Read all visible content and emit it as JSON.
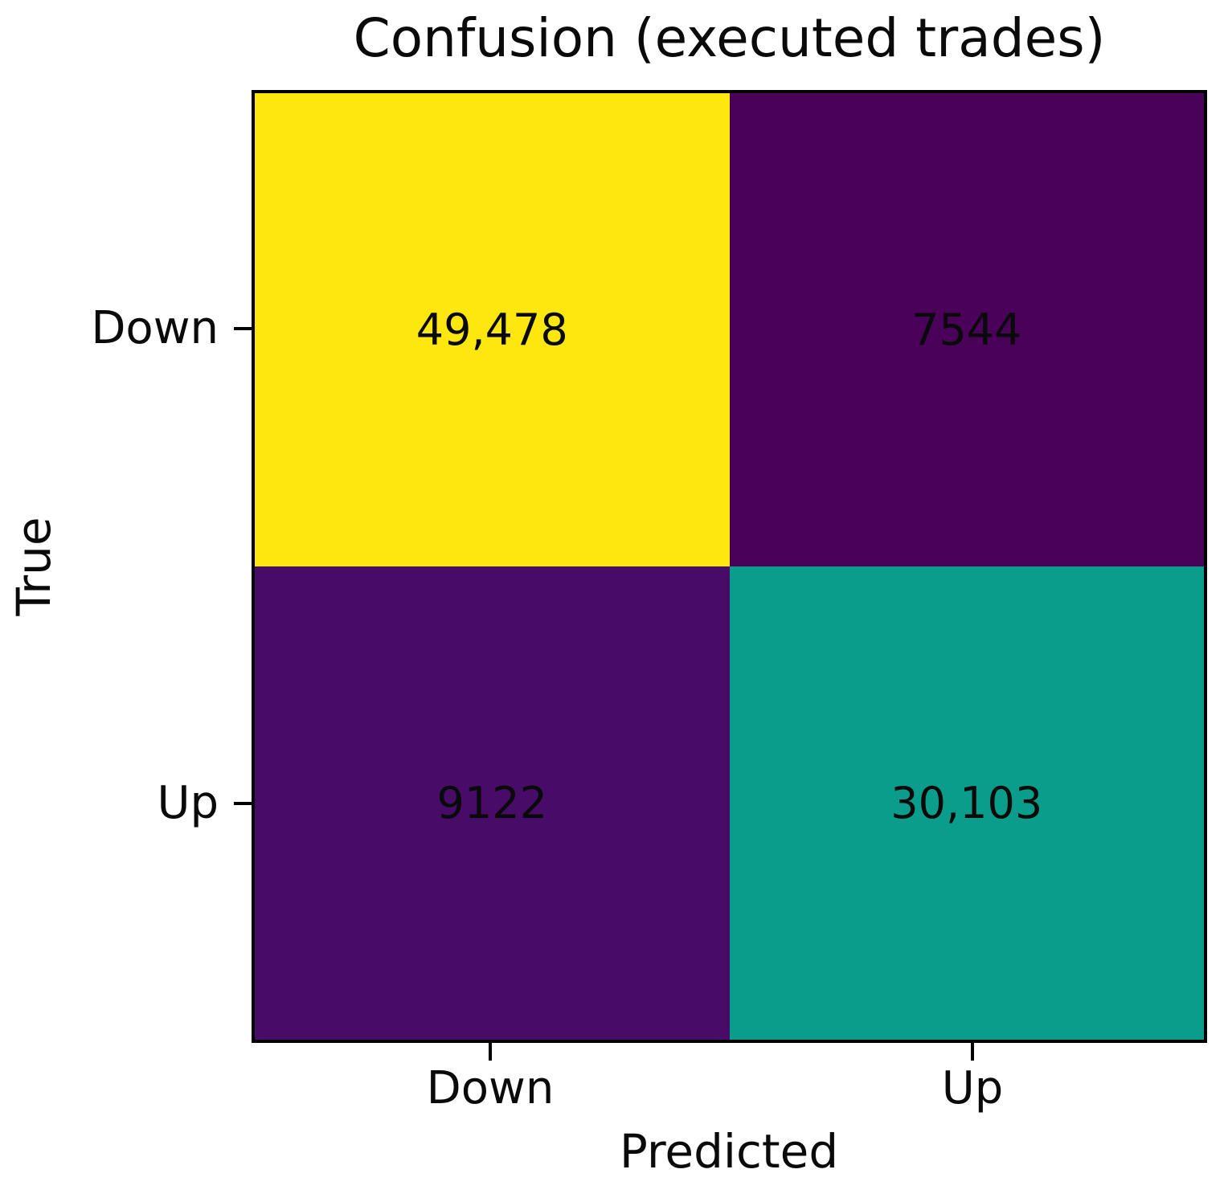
{
  "figure": {
    "background": "#ffffff",
    "border_color": "#000000",
    "text_color": "#0a0a0a"
  },
  "chart_data": {
    "type": "heatmap",
    "title": "Confusion (executed trades)",
    "xlabel": "Predicted",
    "ylabel": "True",
    "x_tick_labels": [
      "Down",
      "Up"
    ],
    "y_tick_labels": [
      "Down",
      "Up"
    ],
    "matrix": [
      [
        49478,
        7544
      ],
      [
        9122,
        30103
      ]
    ],
    "cell_labels": [
      [
        "49,478",
        "7544"
      ],
      [
        "9122",
        "30,103"
      ]
    ],
    "cell_colors": [
      [
        "#fde70e",
        "#4a015a"
      ],
      [
        "#470c67",
        "#0a9d8c"
      ]
    ],
    "colormap": "viridis",
    "legend_position": "none",
    "grid": false
  }
}
